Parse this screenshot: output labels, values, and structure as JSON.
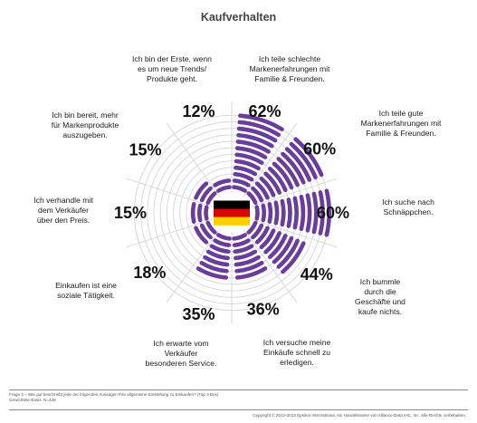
{
  "title": "Kaufverhalten",
  "chart_data": {
    "type": "radial-bar",
    "title": "Kaufverhalten",
    "max_rings": 12,
    "bar_color": "#6a3d9a",
    "grid_color": "#d9d9d9",
    "categories": [
      {
        "label": [
          "Ich teile schlechte",
          "Markenerfahrungen mit",
          "Familie & Freunden."
        ],
        "value": 62,
        "value_label": "62%"
      },
      {
        "label": [
          "Ich teile gute",
          "Markenerfahrungen mit",
          "Familie & Freunden."
        ],
        "value": 60,
        "value_label": "60%"
      },
      {
        "label": [
          "Ich suche nach",
          "Schnäppchen."
        ],
        "value": 60,
        "value_label": "60%"
      },
      {
        "label": [
          "Ich bummle",
          "durch die",
          "Geschäfte und",
          "kaufe nichts."
        ],
        "value": 44,
        "value_label": "44%"
      },
      {
        "label": [
          "Ich versuche meine",
          "Einkäufe schnell zu",
          "erledigen."
        ],
        "value": 36,
        "value_label": "36%"
      },
      {
        "label": [
          "Ich erwarte vom",
          "Verkäufer",
          "besonderen Service."
        ],
        "value": 35,
        "value_label": "35%"
      },
      {
        "label": [
          "Einkaufen ist eine",
          "soziale Tätigkeit."
        ],
        "value": 18,
        "value_label": "18%"
      },
      {
        "label": [
          "Ich verhandle mit",
          "dem Verkäufer",
          "über den Preis."
        ],
        "value": 15,
        "value_label": "15%"
      },
      {
        "label": [
          "Ich bin bereit, mehr",
          "für Markenprodukte",
          "auszugeben."
        ],
        "value": 15,
        "value_label": "15%"
      },
      {
        "label": [
          "Ich bin der Erste, wenn",
          "es um neue Trends/",
          "Produkte geht."
        ],
        "value": 12,
        "value_label": "12%"
      }
    ]
  },
  "center_flag": {
    "colors": [
      "#000000",
      "#dd0000",
      "#ffce00"
    ]
  },
  "footnote": [
    "Frage 4 – Wie gut beschreibt jede der folgenden Aussagen Ihre allgemeine Einstellung zu Einkaufen? (Top 3 Box)",
    "Gewichtete Basis: N=439"
  ],
  "copyright": "Copyright © 2012-2013 Epsilon International, ein Handelsname von Alliance Data IHC, Inc. Alle Rechte vorbehalten."
}
